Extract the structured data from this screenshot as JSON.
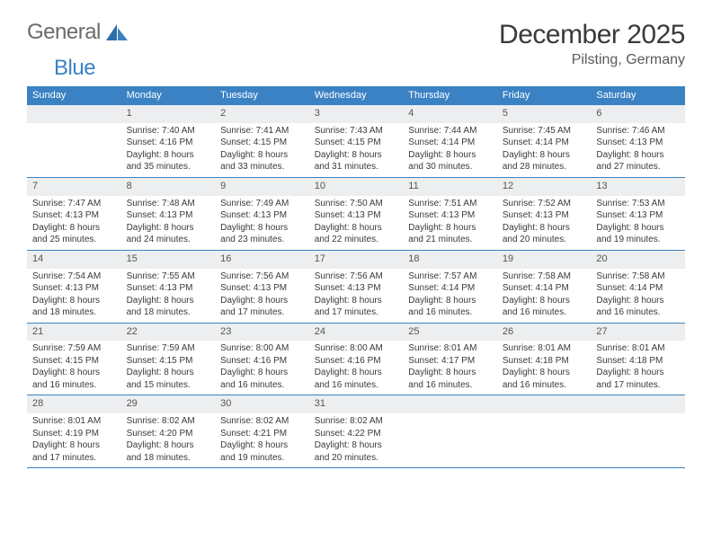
{
  "brand": {
    "part1": "General",
    "part2": "Blue"
  },
  "title": "December 2025",
  "location": "Pilsting, Germany",
  "accent_color": "#3b82c4",
  "header_bg": "#eceeef",
  "text_color": "#3a3a3a",
  "day_names": [
    "Sunday",
    "Monday",
    "Tuesday",
    "Wednesday",
    "Thursday",
    "Friday",
    "Saturday"
  ],
  "first_weekday_index": 1,
  "days": [
    {
      "n": 1,
      "sr": "7:40 AM",
      "ss": "4:16 PM",
      "dl": "8 hours and 35 minutes."
    },
    {
      "n": 2,
      "sr": "7:41 AM",
      "ss": "4:15 PM",
      "dl": "8 hours and 33 minutes."
    },
    {
      "n": 3,
      "sr": "7:43 AM",
      "ss": "4:15 PM",
      "dl": "8 hours and 31 minutes."
    },
    {
      "n": 4,
      "sr": "7:44 AM",
      "ss": "4:14 PM",
      "dl": "8 hours and 30 minutes."
    },
    {
      "n": 5,
      "sr": "7:45 AM",
      "ss": "4:14 PM",
      "dl": "8 hours and 28 minutes."
    },
    {
      "n": 6,
      "sr": "7:46 AM",
      "ss": "4:13 PM",
      "dl": "8 hours and 27 minutes."
    },
    {
      "n": 7,
      "sr": "7:47 AM",
      "ss": "4:13 PM",
      "dl": "8 hours and 25 minutes."
    },
    {
      "n": 8,
      "sr": "7:48 AM",
      "ss": "4:13 PM",
      "dl": "8 hours and 24 minutes."
    },
    {
      "n": 9,
      "sr": "7:49 AM",
      "ss": "4:13 PM",
      "dl": "8 hours and 23 minutes."
    },
    {
      "n": 10,
      "sr": "7:50 AM",
      "ss": "4:13 PM",
      "dl": "8 hours and 22 minutes."
    },
    {
      "n": 11,
      "sr": "7:51 AM",
      "ss": "4:13 PM",
      "dl": "8 hours and 21 minutes."
    },
    {
      "n": 12,
      "sr": "7:52 AM",
      "ss": "4:13 PM",
      "dl": "8 hours and 20 minutes."
    },
    {
      "n": 13,
      "sr": "7:53 AM",
      "ss": "4:13 PM",
      "dl": "8 hours and 19 minutes."
    },
    {
      "n": 14,
      "sr": "7:54 AM",
      "ss": "4:13 PM",
      "dl": "8 hours and 18 minutes."
    },
    {
      "n": 15,
      "sr": "7:55 AM",
      "ss": "4:13 PM",
      "dl": "8 hours and 18 minutes."
    },
    {
      "n": 16,
      "sr": "7:56 AM",
      "ss": "4:13 PM",
      "dl": "8 hours and 17 minutes."
    },
    {
      "n": 17,
      "sr": "7:56 AM",
      "ss": "4:13 PM",
      "dl": "8 hours and 17 minutes."
    },
    {
      "n": 18,
      "sr": "7:57 AM",
      "ss": "4:14 PM",
      "dl": "8 hours and 16 minutes."
    },
    {
      "n": 19,
      "sr": "7:58 AM",
      "ss": "4:14 PM",
      "dl": "8 hours and 16 minutes."
    },
    {
      "n": 20,
      "sr": "7:58 AM",
      "ss": "4:14 PM",
      "dl": "8 hours and 16 minutes."
    },
    {
      "n": 21,
      "sr": "7:59 AM",
      "ss": "4:15 PM",
      "dl": "8 hours and 16 minutes."
    },
    {
      "n": 22,
      "sr": "7:59 AM",
      "ss": "4:15 PM",
      "dl": "8 hours and 15 minutes."
    },
    {
      "n": 23,
      "sr": "8:00 AM",
      "ss": "4:16 PM",
      "dl": "8 hours and 16 minutes."
    },
    {
      "n": 24,
      "sr": "8:00 AM",
      "ss": "4:16 PM",
      "dl": "8 hours and 16 minutes."
    },
    {
      "n": 25,
      "sr": "8:01 AM",
      "ss": "4:17 PM",
      "dl": "8 hours and 16 minutes."
    },
    {
      "n": 26,
      "sr": "8:01 AM",
      "ss": "4:18 PM",
      "dl": "8 hours and 16 minutes."
    },
    {
      "n": 27,
      "sr": "8:01 AM",
      "ss": "4:18 PM",
      "dl": "8 hours and 17 minutes."
    },
    {
      "n": 28,
      "sr": "8:01 AM",
      "ss": "4:19 PM",
      "dl": "8 hours and 17 minutes."
    },
    {
      "n": 29,
      "sr": "8:02 AM",
      "ss": "4:20 PM",
      "dl": "8 hours and 18 minutes."
    },
    {
      "n": 30,
      "sr": "8:02 AM",
      "ss": "4:21 PM",
      "dl": "8 hours and 19 minutes."
    },
    {
      "n": 31,
      "sr": "8:02 AM",
      "ss": "4:22 PM",
      "dl": "8 hours and 20 minutes."
    }
  ],
  "labels": {
    "sunrise": "Sunrise:",
    "sunset": "Sunset:",
    "daylight": "Daylight:"
  }
}
